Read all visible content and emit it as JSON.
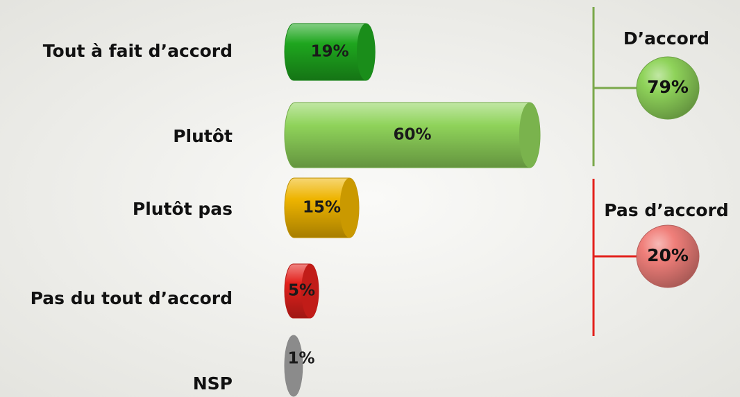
{
  "chart_data": {
    "type": "bar",
    "categories": [
      "Tout à fait d’accord",
      "Plutôt",
      "Plutôt pas",
      "Pas du tout d’accord",
      "NSP"
    ],
    "values": [
      19,
      60,
      15,
      5,
      1
    ],
    "value_labels": [
      "19%",
      "60%",
      "15%",
      "5%",
      "1%"
    ],
    "colors": [
      "#1ea61e",
      "#8fd35a",
      "#eeb400",
      "#e3211c",
      "#a3a3a3"
    ],
    "groups": [
      {
        "name": "D’accord",
        "value": 79,
        "value_label": "79%",
        "color": "#8fd35a",
        "line_color": "#7aa84a"
      },
      {
        "name": "Pas d’accord",
        "value": 20,
        "value_label": "20%",
        "color": "#f07f7a",
        "line_color": "#e3211c"
      }
    ]
  }
}
